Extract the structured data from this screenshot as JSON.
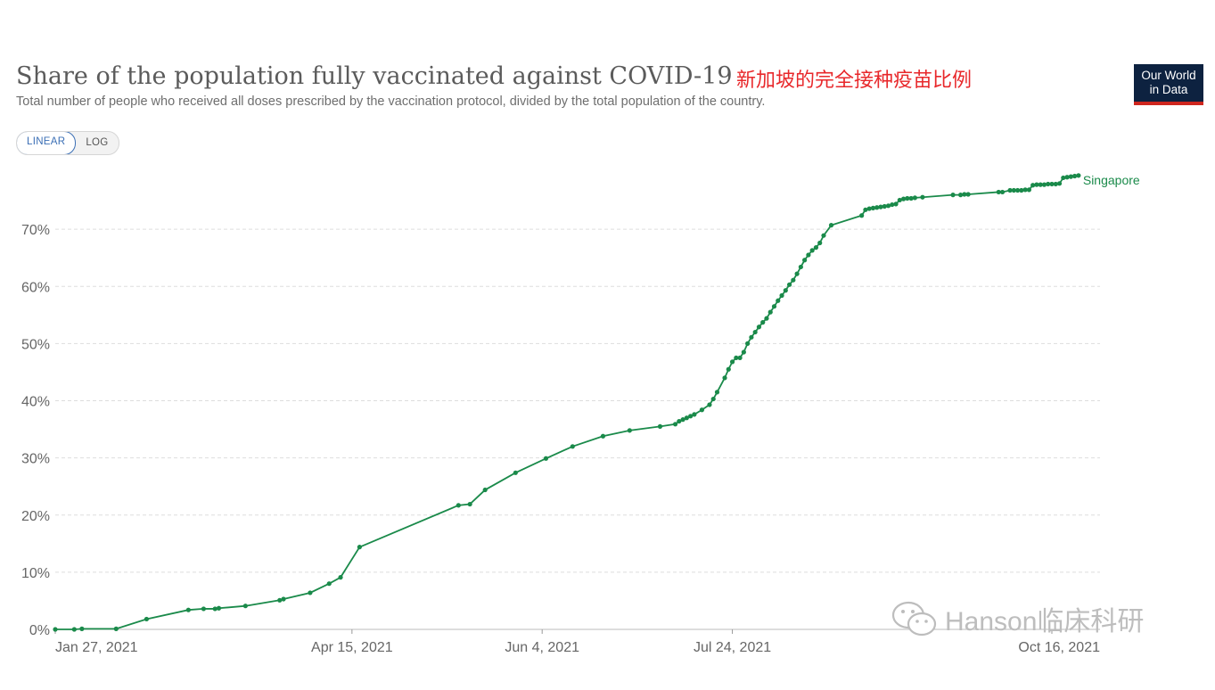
{
  "header": {
    "title": "Share of the population fully vaccinated against COVID-19",
    "subtitle": "Total number of people who received all doses prescribed by the vaccination protocol, divided by the total population of the country.",
    "annotation_cn": "新加坡的完全接种疫苗比例",
    "logo_line1": "Our World",
    "logo_line2": "in Data"
  },
  "controls": {
    "linear_label": "LINEAR",
    "log_label": "LOG",
    "selected": "LINEAR"
  },
  "watermark": {
    "text": "Hanson临床科研"
  },
  "colors": {
    "series": "#1a8a4a",
    "grid": "#dddddd",
    "axis_text": "#666666",
    "logo_bg": "#0d2240",
    "logo_accent": "#ce261e",
    "annotation": "#e8282b"
  },
  "chart_data": {
    "type": "line",
    "title": "Share of the population fully vaccinated against COVID-19",
    "xlabel": "",
    "ylabel": "",
    "x_ticks": [
      "Jan 27, 2021",
      "Apr 15, 2021",
      "Jun 4, 2021",
      "Jul 24, 2021",
      "Oct 16, 2021"
    ],
    "y_ticks": [
      "0%",
      "10%",
      "20%",
      "30%",
      "40%",
      "50%",
      "60%",
      "70%"
    ],
    "xlim": [
      "2021-01-27",
      "2021-10-16"
    ],
    "ylim": [
      0,
      80
    ],
    "grid": true,
    "legend": "inline-end-label",
    "series": [
      {
        "name": "Singapore",
        "points": [
          [
            "2021-01-27",
            0.0
          ],
          [
            "2021-02-01",
            0.0
          ],
          [
            "2021-02-03",
            0.1
          ],
          [
            "2021-02-12",
            0.1
          ],
          [
            "2021-02-20",
            1.8
          ],
          [
            "2021-03-03",
            3.4
          ],
          [
            "2021-03-07",
            3.6
          ],
          [
            "2021-03-10",
            3.6
          ],
          [
            "2021-03-11",
            3.7
          ],
          [
            "2021-03-18",
            4.1
          ],
          [
            "2021-03-27",
            5.1
          ],
          [
            "2021-03-28",
            5.3
          ],
          [
            "2021-04-04",
            6.4
          ],
          [
            "2021-04-09",
            8.0
          ],
          [
            "2021-04-12",
            9.1
          ],
          [
            "2021-04-17",
            14.4
          ],
          [
            "2021-05-13",
            21.7
          ],
          [
            "2021-05-16",
            21.9
          ],
          [
            "2021-05-20",
            24.4
          ],
          [
            "2021-05-28",
            27.4
          ],
          [
            "2021-06-05",
            29.9
          ],
          [
            "2021-06-12",
            32.0
          ],
          [
            "2021-06-20",
            33.8
          ],
          [
            "2021-06-27",
            34.8
          ],
          [
            "2021-07-05",
            35.5
          ],
          [
            "2021-07-09",
            35.9
          ],
          [
            "2021-07-10",
            36.4
          ],
          [
            "2021-07-11",
            36.7
          ],
          [
            "2021-07-12",
            37.0
          ],
          [
            "2021-07-13",
            37.3
          ],
          [
            "2021-07-14",
            37.6
          ],
          [
            "2021-07-16",
            38.4
          ],
          [
            "2021-07-18",
            39.3
          ],
          [
            "2021-07-19",
            40.3
          ],
          [
            "2021-07-20",
            41.5
          ],
          [
            "2021-07-22",
            44.0
          ],
          [
            "2021-07-23",
            45.5
          ],
          [
            "2021-07-24",
            46.8
          ],
          [
            "2021-07-25",
            47.5
          ],
          [
            "2021-07-26",
            47.5
          ],
          [
            "2021-07-27",
            48.5
          ],
          [
            "2021-07-28",
            50.0
          ],
          [
            "2021-07-29",
            51.1
          ],
          [
            "2021-07-30",
            52.0
          ],
          [
            "2021-07-31",
            52.9
          ],
          [
            "2021-08-01",
            53.7
          ],
          [
            "2021-08-02",
            54.4
          ],
          [
            "2021-08-03",
            55.5
          ],
          [
            "2021-08-04",
            56.5
          ],
          [
            "2021-08-05",
            57.5
          ],
          [
            "2021-08-06",
            58.4
          ],
          [
            "2021-08-07",
            59.3
          ],
          [
            "2021-08-08",
            60.3
          ],
          [
            "2021-08-09",
            61.1
          ],
          [
            "2021-08-10",
            62.2
          ],
          [
            "2021-08-11",
            63.4
          ],
          [
            "2021-08-12",
            64.6
          ],
          [
            "2021-08-13",
            65.5
          ],
          [
            "2021-08-14",
            66.3
          ],
          [
            "2021-08-15",
            66.8
          ],
          [
            "2021-08-16",
            67.6
          ],
          [
            "2021-08-17",
            68.9
          ],
          [
            "2021-08-19",
            70.7
          ],
          [
            "2021-08-27",
            72.4
          ],
          [
            "2021-08-28",
            73.4
          ],
          [
            "2021-08-29",
            73.6
          ],
          [
            "2021-08-30",
            73.7
          ],
          [
            "2021-08-31",
            73.8
          ],
          [
            "2021-09-01",
            73.9
          ],
          [
            "2021-09-02",
            74.0
          ],
          [
            "2021-09-03",
            74.1
          ],
          [
            "2021-09-04",
            74.3
          ],
          [
            "2021-09-05",
            74.4
          ],
          [
            "2021-09-06",
            75.1
          ],
          [
            "2021-09-07",
            75.3
          ],
          [
            "2021-09-08",
            75.4
          ],
          [
            "2021-09-09",
            75.4
          ],
          [
            "2021-09-10",
            75.5
          ],
          [
            "2021-09-12",
            75.6
          ],
          [
            "2021-09-20",
            76.0
          ],
          [
            "2021-09-22",
            76.0
          ],
          [
            "2021-09-23",
            76.1
          ],
          [
            "2021-09-24",
            76.1
          ],
          [
            "2021-10-02",
            76.5
          ],
          [
            "2021-10-03",
            76.5
          ],
          [
            "2021-10-05",
            76.8
          ],
          [
            "2021-10-06",
            76.8
          ],
          [
            "2021-10-07",
            76.8
          ],
          [
            "2021-10-08",
            76.8
          ],
          [
            "2021-10-09",
            76.9
          ],
          [
            "2021-10-10",
            76.9
          ],
          [
            "2021-10-11",
            77.7
          ],
          [
            "2021-10-12",
            77.8
          ],
          [
            "2021-10-13",
            77.8
          ],
          [
            "2021-10-14",
            77.8
          ],
          [
            "2021-10-15",
            77.9
          ],
          [
            "2021-10-16",
            77.9
          ],
          [
            "2021-10-17",
            77.9
          ],
          [
            "2021-10-18",
            78.0
          ],
          [
            "2021-10-19",
            79.0
          ],
          [
            "2021-10-20",
            79.1
          ],
          [
            "2021-10-21",
            79.2
          ],
          [
            "2021-10-22",
            79.3
          ],
          [
            "2021-10-23",
            79.4
          ]
        ]
      }
    ]
  }
}
